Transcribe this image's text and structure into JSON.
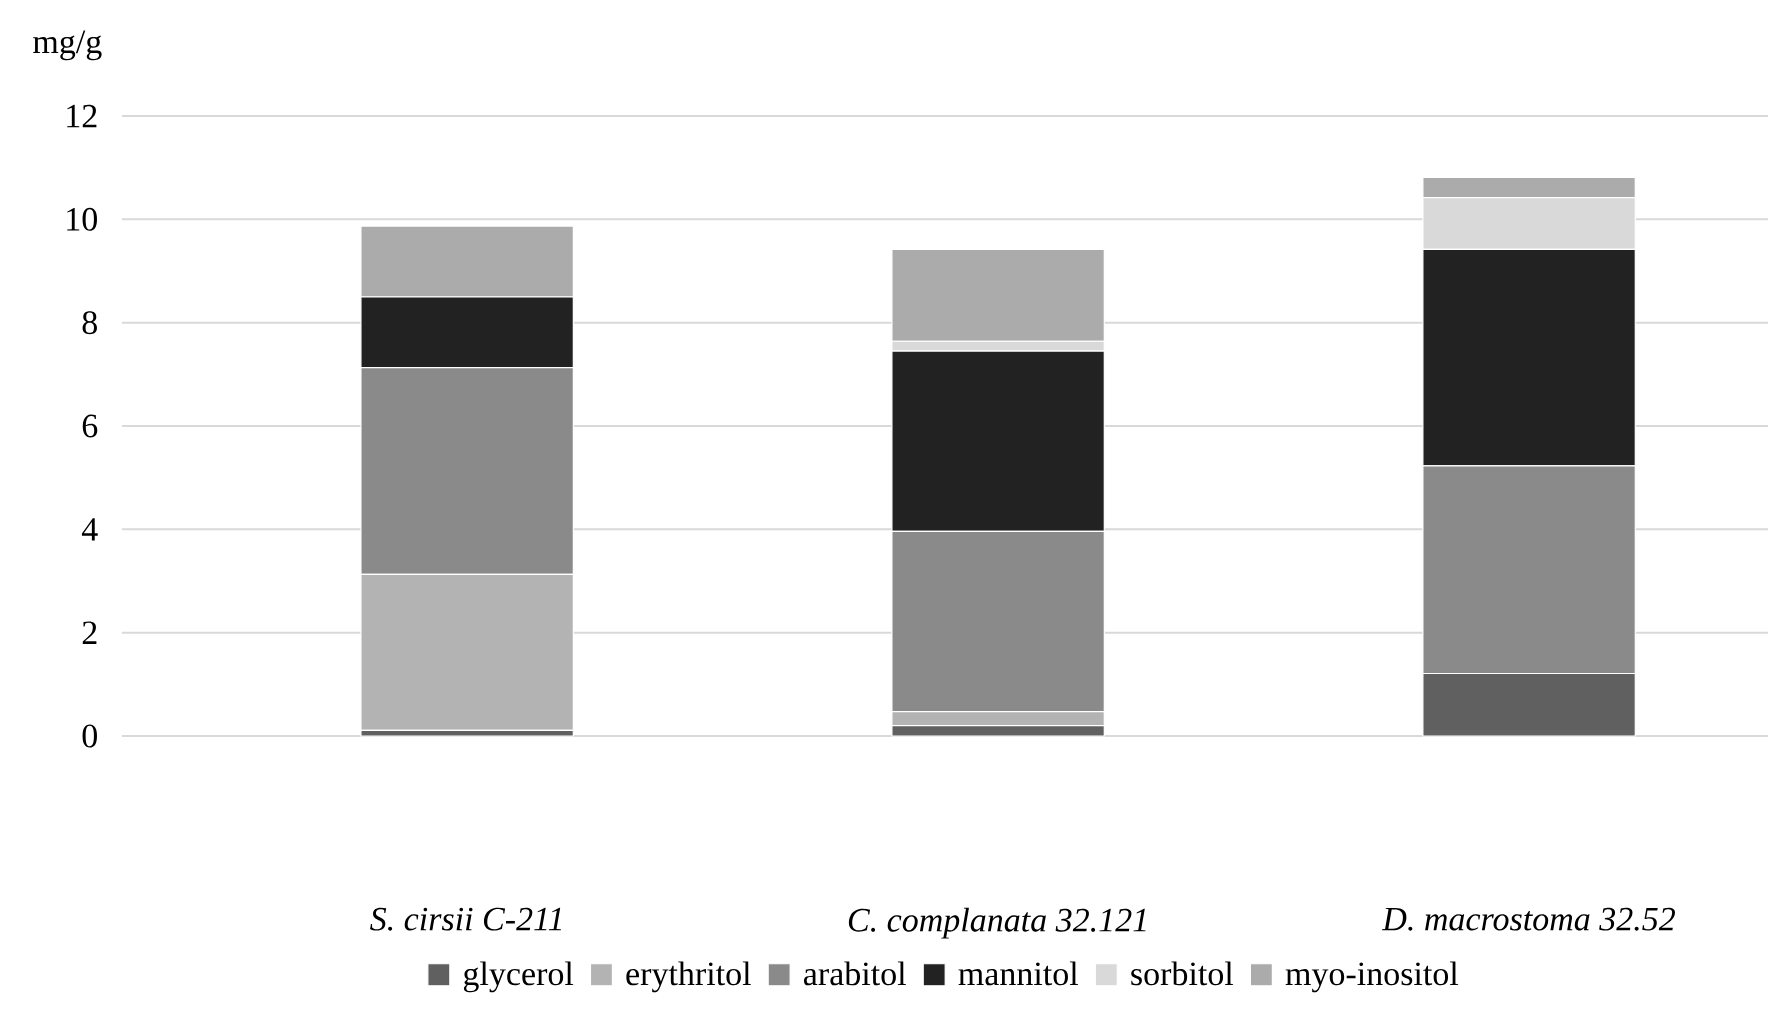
{
  "chart_data": {
    "type": "bar",
    "stacked": true,
    "ylabel": "mg/g",
    "categories": [
      "S. cirsii C-211",
      "C. complanata 32.121",
      "D. macrostoma 32.52"
    ],
    "series": [
      {
        "name": "glycerol",
        "color": "#606060",
        "values": [
          0.11,
          0.2,
          1.21
        ]
      },
      {
        "name": "erythritol",
        "color": "#b3b3b3",
        "values": [
          3.02,
          0.27,
          0
        ]
      },
      {
        "name": "arabitol",
        "color": "#8a8a8a",
        "values": [
          4.0,
          3.49,
          4.02
        ]
      },
      {
        "name": "mannitol",
        "color": "#222222",
        "values": [
          1.37,
          3.49,
          4.19
        ]
      },
      {
        "name": "sorbitol",
        "color": "#d9d9d9",
        "values": [
          0,
          0.19,
          1.0
        ]
      },
      {
        "name": "myo-inositol",
        "color": "#ababab",
        "values": [
          1.37,
          1.78,
          0.39
        ]
      }
    ],
    "ylim": [
      0,
      12
    ],
    "yticks": [
      0,
      2,
      4,
      6,
      8,
      10,
      12
    ],
    "grid": "y",
    "legend": "bottom"
  }
}
